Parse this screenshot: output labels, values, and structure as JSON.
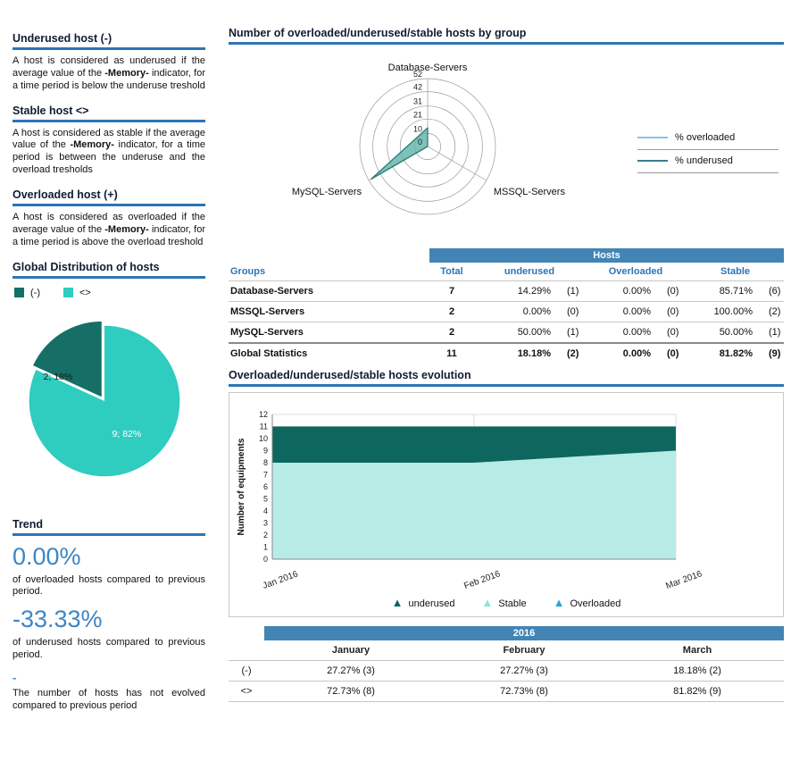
{
  "sidebar": {
    "sections": [
      {
        "title": "Underused host (-)",
        "pre": "A host is considered as underused if the average value of the ",
        "bold": "-Memory-",
        "post": " indicator, for a time period is below the underuse treshold"
      },
      {
        "title": "Stable host <>",
        "pre": "A host is considered as stable if the average value of the ",
        "bold": "-Memory-",
        "post": " indicator, for a time period is between the underuse and the overload tresholds"
      },
      {
        "title": "Overloaded host (+)",
        "pre": "A host is considered as overloaded if the average value of the ",
        "bold": "-Memory-",
        "post": " indicator, for a time period is above the overload treshold"
      }
    ],
    "distribution": {
      "title": "Global Distribution of hosts",
      "legend": [
        {
          "label": "(-)",
          "color": "#156f66"
        },
        {
          "label": "<>",
          "color": "#2fccc0"
        }
      ]
    },
    "trend": {
      "title": "Trend",
      "value_color": "#3d85c6",
      "overloaded_value": "0.00%",
      "overloaded_text": "of overloaded hosts compared to previous period.",
      "underused_value": "-33.33%",
      "underused_text": "of underused hosts compared to previous period.",
      "hosts_value": "-",
      "hosts_text": "The number of hosts has not evolved compared to previous period"
    }
  },
  "main": {
    "group_chart_title": "Number of overloaded/underused/stable hosts by group",
    "radar_legend": [
      {
        "label": "% overloaded",
        "color": "#7ec8e3"
      },
      {
        "label": "% underused",
        "color": "#3a7d8c"
      }
    ],
    "hosts_table": {
      "band_label": "Hosts",
      "col_groups": "Groups",
      "col_total": "Total",
      "col_underused": "underused",
      "col_overloaded": "Overloaded",
      "col_stable": "Stable",
      "rows": [
        {
          "group": "Database-Servers",
          "total": "7",
          "u_pct": "14.29%",
          "u_n": "(1)",
          "o_pct": "0.00%",
          "o_n": "(0)",
          "s_pct": "85.71%",
          "s_n": "(6)"
        },
        {
          "group": "MSSQL-Servers",
          "total": "2",
          "u_pct": "0.00%",
          "u_n": "(0)",
          "o_pct": "0.00%",
          "o_n": "(0)",
          "s_pct": "100.00%",
          "s_n": "(2)"
        },
        {
          "group": "MySQL-Servers",
          "total": "2",
          "u_pct": "50.00%",
          "u_n": "(1)",
          "o_pct": "0.00%",
          "o_n": "(0)",
          "s_pct": "50.00%",
          "s_n": "(1)"
        }
      ],
      "total_row": {
        "group": "Global Statistics",
        "total": "11",
        "u_pct": "18.18%",
        "u_n": "(2)",
        "o_pct": "0.00%",
        "o_n": "(0)",
        "s_pct": "81.82%",
        "s_n": "(9)"
      }
    },
    "evolution_title": "Overloaded/underused/stable hosts evolution",
    "year_table": {
      "band_label": "2016",
      "months": [
        "January",
        "February",
        "March"
      ],
      "rows": [
        {
          "label": "(-)",
          "values": [
            "27.27% (3)",
            "27.27% (3)",
            "18.18% (2)"
          ]
        },
        {
          "label": "<>",
          "values": [
            "72.73% (8)",
            "72.73% (8)",
            "81.82% (9)"
          ]
        }
      ]
    }
  },
  "chart_data": [
    {
      "type": "pie",
      "title": "Global Distribution of hosts",
      "labels": [
        "(-)",
        "<>"
      ],
      "values": [
        2,
        9
      ],
      "slice_labels": [
        "2; 18%",
        "9; 82%"
      ],
      "colors": [
        "#156f66",
        "#2fccc0"
      ]
    },
    {
      "type": "radar",
      "title": "Number of overloaded/underused/stable hosts by group",
      "axes": [
        "Database-Servers",
        "MSSQL-Servers",
        "MySQL-Servers"
      ],
      "ticks": [
        0,
        10,
        21,
        31,
        42,
        52
      ],
      "rmax": 52,
      "series": [
        {
          "name": "% overloaded",
          "values": [
            0,
            0,
            0
          ],
          "color": "#7ec8e3",
          "fill": "none"
        },
        {
          "name": "% underused",
          "values": [
            14.29,
            0,
            50
          ],
          "color": "#2e7d74",
          "fill": "rgba(95,179,169,0.8)"
        }
      ],
      "legend_position": "right"
    },
    {
      "type": "area",
      "title": "Overloaded/underused/stable hosts evolution",
      "x": [
        "Jan 2016",
        "Feb 2016",
        "Mar 2016"
      ],
      "ylabel": "Number of equipments",
      "ylim": [
        0,
        12
      ],
      "stacked": true,
      "grid": true,
      "series": [
        {
          "name": "Stable",
          "values": [
            8,
            8,
            9
          ],
          "color": "#b7ece6"
        },
        {
          "name": "underused",
          "values": [
            3,
            3,
            2
          ],
          "color": "#0e675e"
        },
        {
          "name": "Overloaded",
          "values": [
            0,
            0,
            0
          ],
          "color": "#2aa3dc"
        }
      ],
      "legend": [
        {
          "label": "underused",
          "color": "#0e675e"
        },
        {
          "label": "Stable",
          "color": "#8fe3d9"
        },
        {
          "label": "Overloaded",
          "color": "#2aa3dc"
        }
      ]
    }
  ]
}
